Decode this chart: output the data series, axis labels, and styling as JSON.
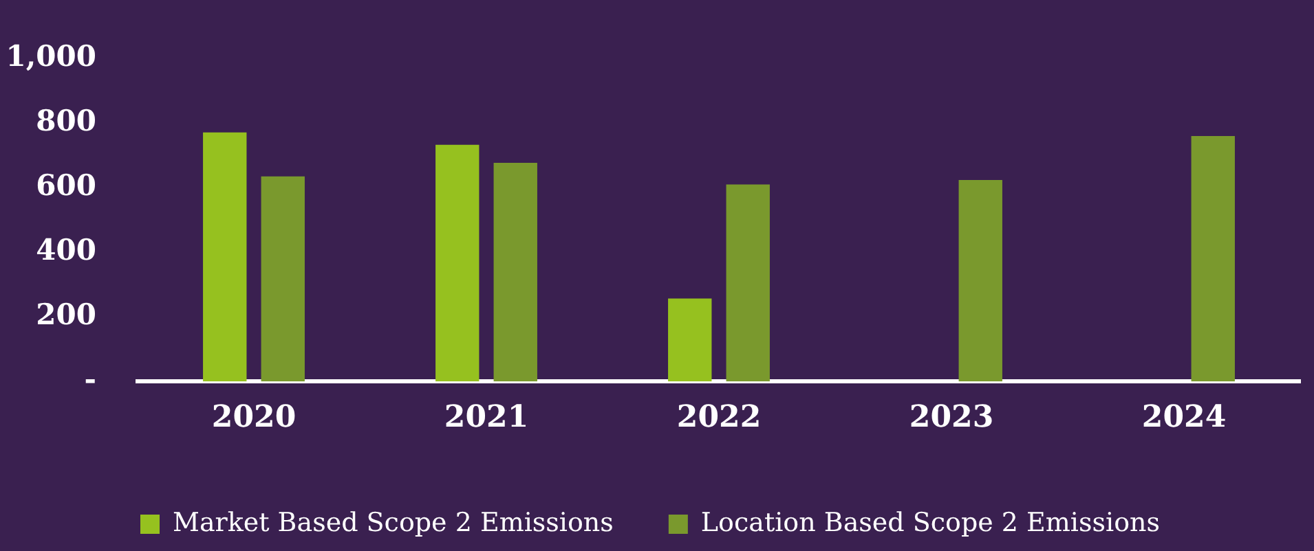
{
  "chart_data": {
    "type": "bar",
    "categories": [
      "2020",
      "2021",
      "2022",
      "2023",
      "2024"
    ],
    "series": [
      {
        "name": "Market Based Scope 2 Emissions",
        "color": "#96c11f",
        "values": [
          771,
          733,
          257,
          null,
          null
        ]
      },
      {
        "name": "Location Based Scope 2 Emissions",
        "color": "#7a992d",
        "values": [
          635,
          677,
          610,
          624,
          760
        ]
      }
    ],
    "ylim": [
      0,
      1000
    ],
    "yticks": [
      {
        "value": 0,
        "label": "-"
      },
      200,
      400,
      600,
      800,
      {
        "value": 1000,
        "label": "1,000"
      }
    ],
    "grid": false,
    "legend": "bottom"
  }
}
